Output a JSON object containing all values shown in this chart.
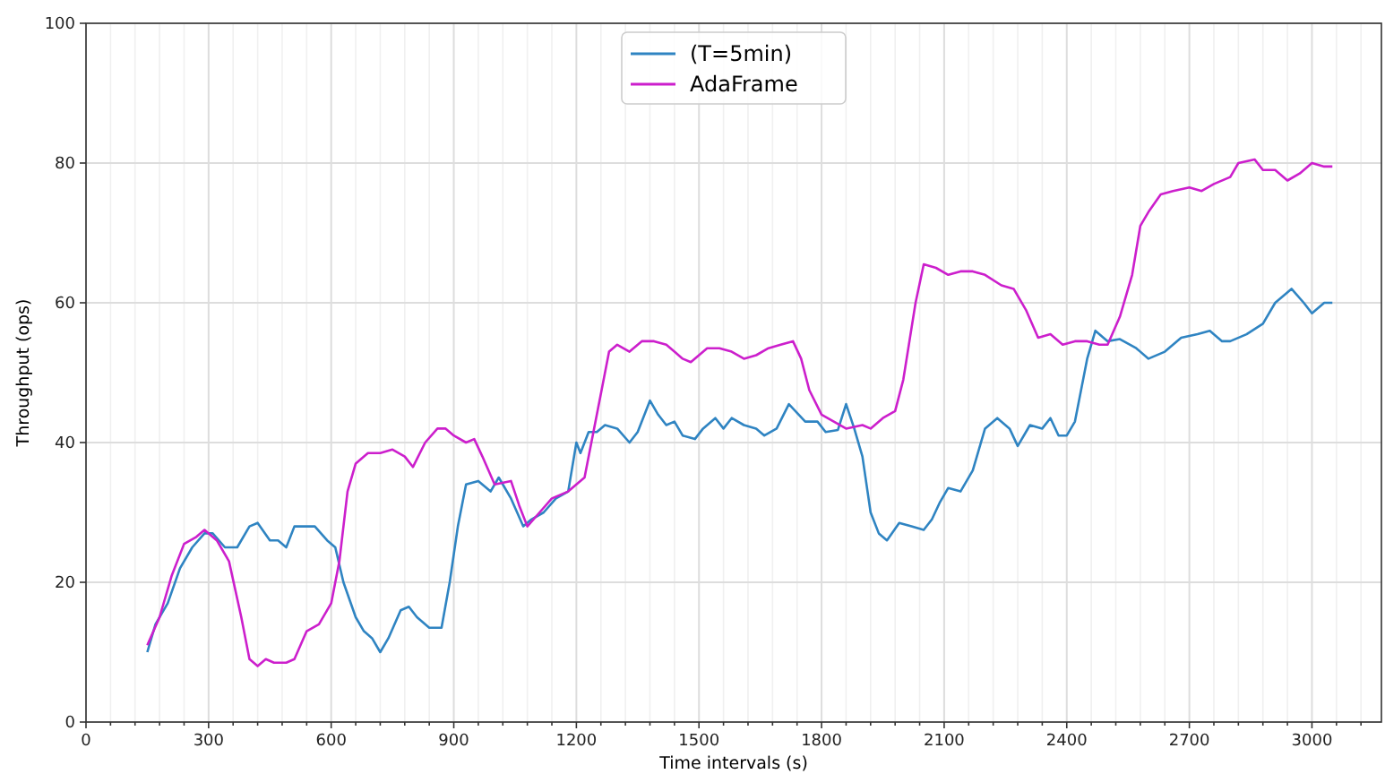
{
  "chart_data": {
    "type": "line",
    "xlabel": "Time intervals (s)",
    "ylabel": "Throughput (ops)",
    "xlim": [
      0,
      3170
    ],
    "ylim": [
      0,
      100
    ],
    "xticks": [
      0,
      {
        "value": 60,
        "label": null
      },
      {
        "value": 120,
        "label": null
      },
      {
        "value": 180,
        "label": null
      },
      {
        "value": 240,
        "label": null
      },
      300,
      {
        "value": 360,
        "label": null
      },
      {
        "value": 420,
        "label": null
      },
      {
        "value": 480,
        "label": null
      },
      {
        "value": 540,
        "label": null
      },
      600,
      {
        "value": 660,
        "label": null
      },
      {
        "value": 720,
        "label": null
      },
      {
        "value": 780,
        "label": null
      },
      {
        "value": 840,
        "label": null
      },
      900,
      {
        "value": 960,
        "label": null
      },
      {
        "value": 1020,
        "label": null
      },
      {
        "value": 1080,
        "label": null
      },
      {
        "value": 1140,
        "label": null
      },
      1200,
      {
        "value": 1260,
        "label": null
      },
      {
        "value": 1320,
        "label": null
      },
      {
        "value": 1380,
        "label": null
      },
      {
        "value": 1440,
        "label": null
      },
      1500,
      {
        "value": 1560,
        "label": null
      },
      {
        "value": 1620,
        "label": null
      },
      {
        "value": 1680,
        "label": null
      },
      {
        "value": 1740,
        "label": null
      },
      1800,
      {
        "value": 1860,
        "label": null
      },
      {
        "value": 1920,
        "label": null
      },
      {
        "value": 1980,
        "label": null
      },
      {
        "value": 2040,
        "label": null
      },
      2100,
      {
        "value": 2160,
        "label": null
      },
      {
        "value": 2220,
        "label": null
      },
      {
        "value": 2280,
        "label": null
      },
      {
        "value": 2340,
        "label": null
      },
      2400,
      {
        "value": 2460,
        "label": null
      },
      {
        "value": 2520,
        "label": null
      },
      {
        "value": 2580,
        "label": null
      },
      {
        "value": 2640,
        "label": null
      },
      2700,
      {
        "value": 2760,
        "label": null
      },
      {
        "value": 2820,
        "label": null
      },
      {
        "value": 2880,
        "label": null
      },
      {
        "value": 2940,
        "label": null
      },
      3000,
      {
        "value": 3060,
        "label": null
      },
      {
        "value": 3120,
        "label": null
      }
    ],
    "yticks": [
      0,
      20,
      40,
      60,
      80,
      100
    ],
    "grid": true,
    "legend": "top",
    "marker": "none",
    "line_style": "solid",
    "series": [
      {
        "name": "(T=5min)",
        "color": "#2f84c2",
        "x": [
          150,
          170,
          200,
          230,
          260,
          290,
          310,
          340,
          370,
          400,
          420,
          450,
          470,
          490,
          510,
          540,
          560,
          590,
          610,
          630,
          660,
          680,
          700,
          720,
          740,
          770,
          790,
          810,
          840,
          870,
          890,
          910,
          930,
          960,
          990,
          1010,
          1040,
          1070,
          1090,
          1120,
          1150,
          1180,
          1200,
          1210,
          1230,
          1250,
          1270,
          1300,
          1330,
          1350,
          1380,
          1400,
          1420,
          1440,
          1460,
          1490,
          1510,
          1540,
          1560,
          1580,
          1610,
          1640,
          1660,
          1690,
          1720,
          1760,
          1790,
          1810,
          1840,
          1860,
          1880,
          1900,
          1920,
          1940,
          1960,
          1990,
          2020,
          2050,
          2070,
          2090,
          2110,
          2140,
          2170,
          2200,
          2230,
          2260,
          2280,
          2310,
          2340,
          2360,
          2380,
          2400,
          2420,
          2450,
          2470,
          2500,
          2530,
          2570,
          2600,
          2640,
          2680,
          2720,
          2750,
          2780,
          2800,
          2840,
          2880,
          2910,
          2950,
          2980,
          3000,
          3030,
          3050
        ],
        "values": [
          10,
          14,
          17,
          22,
          25,
          27,
          27,
          25,
          25,
          28,
          28.5,
          26,
          26,
          25,
          28,
          28,
          28,
          26,
          25,
          20,
          15,
          13,
          12,
          10,
          12,
          16,
          16.5,
          15,
          13.5,
          13.5,
          20,
          28,
          34,
          34.5,
          33,
          35,
          32,
          28,
          29,
          30,
          32,
          33,
          40,
          38.5,
          41.5,
          41.5,
          42.5,
          42,
          40,
          41.5,
          46,
          44,
          42.5,
          43,
          41,
          40.5,
          42,
          43.5,
          42,
          43.5,
          42.5,
          42,
          41,
          42,
          45.5,
          43,
          43,
          41.5,
          41.8,
          45.5,
          42,
          38,
          30,
          27,
          26,
          28.5,
          28,
          27.5,
          29,
          31.5,
          33.5,
          33,
          36,
          42,
          43.5,
          42,
          39.5,
          42.5,
          42,
          43.5,
          41,
          41,
          43,
          52,
          56,
          54.5,
          54.8,
          53.5,
          52,
          53,
          55,
          55.5,
          56,
          54.5,
          54.5,
          55.5,
          57,
          60,
          62,
          60,
          58.5,
          60,
          60
        ]
      },
      {
        "name": "AdaFrame",
        "color": "#cc1fcc",
        "x": [
          150,
          180,
          210,
          240,
          270,
          290,
          320,
          350,
          380,
          400,
          420,
          440,
          460,
          490,
          510,
          540,
          570,
          600,
          620,
          640,
          660,
          690,
          720,
          750,
          780,
          800,
          830,
          860,
          880,
          900,
          930,
          950,
          970,
          1000,
          1040,
          1060,
          1080,
          1110,
          1140,
          1180,
          1220,
          1240,
          1260,
          1280,
          1300,
          1330,
          1360,
          1390,
          1420,
          1440,
          1460,
          1480,
          1500,
          1520,
          1550,
          1580,
          1610,
          1640,
          1670,
          1700,
          1730,
          1750,
          1770,
          1800,
          1830,
          1860,
          1900,
          1920,
          1950,
          1980,
          2000,
          2030,
          2050,
          2080,
          2110,
          2140,
          2170,
          2200,
          2240,
          2270,
          2300,
          2330,
          2360,
          2390,
          2420,
          2450,
          2480,
          2500,
          2530,
          2560,
          2580,
          2600,
          2630,
          2660,
          2700,
          2730,
          2760,
          2800,
          2820,
          2860,
          2880,
          2910,
          2940,
          2970,
          3000,
          3030,
          3050
        ],
        "values": [
          11,
          15,
          21,
          25.5,
          26.5,
          27.5,
          26,
          23,
          15,
          9,
          8,
          9,
          8.5,
          8.5,
          9,
          13,
          14,
          17,
          23,
          33,
          37,
          38.5,
          38.5,
          39,
          38,
          36.5,
          40,
          42,
          42,
          41,
          40,
          40.5,
          38,
          34,
          34.5,
          31,
          28,
          30,
          32,
          33,
          35,
          41,
          47,
          53,
          54,
          53,
          54.5,
          54.5,
          54,
          53,
          52,
          51.5,
          52.5,
          53.5,
          53.5,
          53,
          52,
          52.5,
          53.5,
          54,
          54.5,
          52,
          47.5,
          44,
          43,
          42,
          42.5,
          42,
          43.5,
          44.5,
          49,
          60,
          65.5,
          65,
          64,
          64.5,
          64.5,
          64,
          62.5,
          62,
          59,
          55,
          55.5,
          54,
          54.5,
          54.5,
          54,
          54,
          58,
          64,
          71,
          73,
          75.5,
          76,
          76.5,
          76,
          77,
          78,
          80,
          80.5,
          79,
          79,
          77.5,
          78.5,
          80,
          79.5,
          79.5
        ]
      }
    ]
  }
}
